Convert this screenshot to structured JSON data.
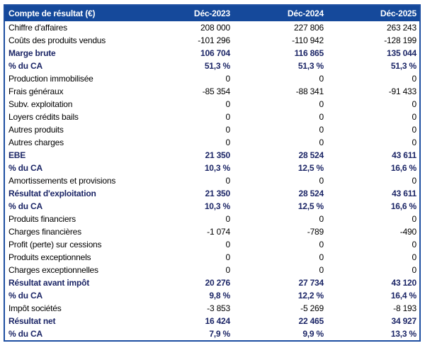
{
  "chart_data": {
    "type": "table",
    "title_cell": "Compte de résultat (€)",
    "columns": [
      "Déc-2023",
      "Déc-2024",
      "Déc-2025"
    ],
    "rows": [
      {
        "label": "Chiffre d'affaires",
        "values": [
          "208 000",
          "227 806",
          "263 243"
        ],
        "emphasis": false
      },
      {
        "label": "Coûts des produits vendus",
        "values": [
          "-101 296",
          "-110 942",
          "-128 199"
        ],
        "emphasis": false
      },
      {
        "label": "Marge brute",
        "values": [
          "106 704",
          "116 865",
          "135 044"
        ],
        "emphasis": true
      },
      {
        "label": "% du CA",
        "values": [
          "51,3 %",
          "51,3 %",
          "51,3 %"
        ],
        "emphasis": true
      },
      {
        "label": "Production immobilisée",
        "values": [
          "0",
          "0",
          "0"
        ],
        "emphasis": false
      },
      {
        "label": "Frais généraux",
        "values": [
          "-85 354",
          "-88 341",
          "-91 433"
        ],
        "emphasis": false
      },
      {
        "label": "Subv. exploitation",
        "values": [
          "0",
          "0",
          "0"
        ],
        "emphasis": false
      },
      {
        "label": "Loyers crédits bails",
        "values": [
          "0",
          "0",
          "0"
        ],
        "emphasis": false
      },
      {
        "label": "Autres produits",
        "values": [
          "0",
          "0",
          "0"
        ],
        "emphasis": false
      },
      {
        "label": "Autres charges",
        "values": [
          "0",
          "0",
          "0"
        ],
        "emphasis": false
      },
      {
        "label": "EBE",
        "values": [
          "21 350",
          "28 524",
          "43 611"
        ],
        "emphasis": true
      },
      {
        "label": "% du CA",
        "values": [
          "10,3 %",
          "12,5 %",
          "16,6 %"
        ],
        "emphasis": true
      },
      {
        "label": "Amortissements et provisions",
        "values": [
          "0",
          "0",
          "0"
        ],
        "emphasis": false
      },
      {
        "label": "Résultat d'exploitation",
        "values": [
          "21 350",
          "28 524",
          "43 611"
        ],
        "emphasis": true
      },
      {
        "label": "% du CA",
        "values": [
          "10,3 %",
          "12,5 %",
          "16,6 %"
        ],
        "emphasis": true
      },
      {
        "label": "Produits financiers",
        "values": [
          "0",
          "0",
          "0"
        ],
        "emphasis": false
      },
      {
        "label": "Charges financières",
        "values": [
          "-1 074",
          "-789",
          "-490"
        ],
        "emphasis": false
      },
      {
        "label": "Profit (perte) sur cessions",
        "values": [
          "0",
          "0",
          "0"
        ],
        "emphasis": false
      },
      {
        "label": "Produits exceptionnels",
        "values": [
          "0",
          "0",
          "0"
        ],
        "emphasis": false
      },
      {
        "label": "Charges exceptionnelles",
        "values": [
          "0",
          "0",
          "0"
        ],
        "emphasis": false
      },
      {
        "label": "Résultat avant impôt",
        "values": [
          "20 276",
          "27 734",
          "43 120"
        ],
        "emphasis": true
      },
      {
        "label": "% du CA",
        "values": [
          "9,8 %",
          "12,2 %",
          "16,4 %"
        ],
        "emphasis": true
      },
      {
        "label": "Impôt sociétés",
        "values": [
          "-3 853",
          "-5 269",
          "-8 193"
        ],
        "emphasis": false
      },
      {
        "label": "Résultat net",
        "values": [
          "16 424",
          "22 465",
          "34 927"
        ],
        "emphasis": true
      },
      {
        "label": "% du CA",
        "values": [
          "7,9 %",
          "9,9 %",
          "13,3 %"
        ],
        "emphasis": true
      }
    ]
  },
  "colors": {
    "header_bg": "#15499B",
    "header_text": "#FFFFFF",
    "accent_text": "#1B2566",
    "body_text": "#000000",
    "border": "#1E4FA1"
  }
}
